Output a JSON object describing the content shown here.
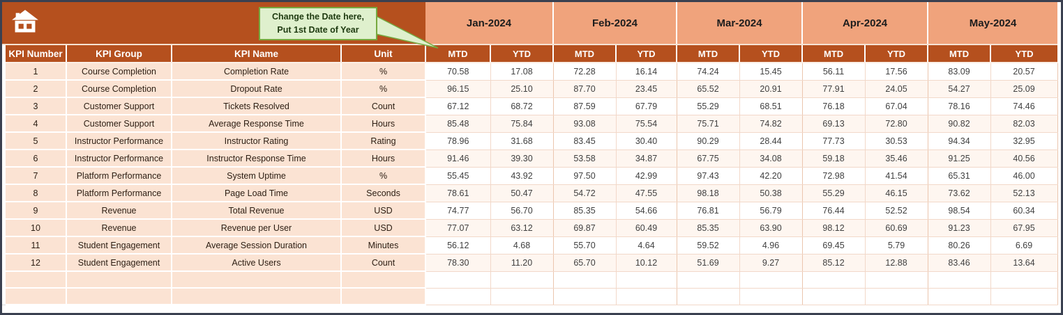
{
  "callout": {
    "line1": "Change the Date here,",
    "line2": "Put 1st Date of Year"
  },
  "months": [
    "Jan-2024",
    "Feb-2024",
    "Mar-2024",
    "Apr-2024",
    "May-2024"
  ],
  "subcolumns": [
    "MTD",
    "YTD"
  ],
  "columns": [
    "KPI Number",
    "KPI Group",
    "KPI Name",
    "Unit"
  ],
  "rows": [
    {
      "kpi_number": "1",
      "kpi_group": "Course Completion",
      "kpi_name": "Completion Rate",
      "unit": "%",
      "values": [
        "70.58",
        "17.08",
        "72.28",
        "16.14",
        "74.24",
        "15.45",
        "56.11",
        "17.56",
        "83.09",
        "20.57"
      ]
    },
    {
      "kpi_number": "2",
      "kpi_group": "Course Completion",
      "kpi_name": "Dropout Rate",
      "unit": "%",
      "values": [
        "96.15",
        "25.10",
        "87.70",
        "23.45",
        "65.52",
        "20.91",
        "77.91",
        "24.05",
        "54.27",
        "25.09"
      ]
    },
    {
      "kpi_number": "3",
      "kpi_group": "Customer Support",
      "kpi_name": "Tickets Resolved",
      "unit": "Count",
      "values": [
        "67.12",
        "68.72",
        "87.59",
        "67.79",
        "55.29",
        "68.51",
        "76.18",
        "67.04",
        "78.16",
        "74.46"
      ]
    },
    {
      "kpi_number": "4",
      "kpi_group": "Customer Support",
      "kpi_name": "Average Response Time",
      "unit": "Hours",
      "values": [
        "85.48",
        "75.84",
        "93.08",
        "75.54",
        "75.71",
        "74.82",
        "69.13",
        "72.80",
        "90.82",
        "82.03"
      ]
    },
    {
      "kpi_number": "5",
      "kpi_group": "Instructor Performance",
      "kpi_name": "Instructor Rating",
      "unit": "Rating",
      "values": [
        "78.96",
        "31.68",
        "83.45",
        "30.40",
        "90.29",
        "28.44",
        "77.73",
        "30.53",
        "94.34",
        "32.95"
      ]
    },
    {
      "kpi_number": "6",
      "kpi_group": "Instructor Performance",
      "kpi_name": "Instructor Response Time",
      "unit": "Hours",
      "values": [
        "91.46",
        "39.30",
        "53.58",
        "34.87",
        "67.75",
        "34.08",
        "59.18",
        "35.46",
        "91.25",
        "40.56"
      ]
    },
    {
      "kpi_number": "7",
      "kpi_group": "Platform Performance",
      "kpi_name": "System Uptime",
      "unit": "%",
      "values": [
        "55.45",
        "43.92",
        "97.50",
        "42.99",
        "97.43",
        "42.20",
        "72.98",
        "41.54",
        "65.31",
        "46.00"
      ]
    },
    {
      "kpi_number": "8",
      "kpi_group": "Platform Performance",
      "kpi_name": "Page Load Time",
      "unit": "Seconds",
      "values": [
        "78.61",
        "50.47",
        "54.72",
        "47.55",
        "98.18",
        "50.38",
        "55.29",
        "46.15",
        "73.62",
        "52.13"
      ]
    },
    {
      "kpi_number": "9",
      "kpi_group": "Revenue",
      "kpi_name": "Total Revenue",
      "unit": "USD",
      "values": [
        "74.77",
        "56.70",
        "85.35",
        "54.66",
        "76.81",
        "56.79",
        "76.44",
        "52.52",
        "98.54",
        "60.34"
      ]
    },
    {
      "kpi_number": "10",
      "kpi_group": "Revenue",
      "kpi_name": "Revenue per User",
      "unit": "USD",
      "values": [
        "77.07",
        "63.12",
        "69.87",
        "60.49",
        "85.35",
        "63.90",
        "98.12",
        "60.69",
        "91.23",
        "67.95"
      ]
    },
    {
      "kpi_number": "11",
      "kpi_group": "Student Engagement",
      "kpi_name": "Average Session Duration",
      "unit": "Minutes",
      "values": [
        "56.12",
        "4.68",
        "55.70",
        "4.64",
        "59.52",
        "4.96",
        "69.45",
        "5.79",
        "80.26",
        "6.69"
      ]
    },
    {
      "kpi_number": "12",
      "kpi_group": "Student Engagement",
      "kpi_name": "Active Users",
      "unit": "Count",
      "values": [
        "78.30",
        "11.20",
        "65.70",
        "10.12",
        "51.69",
        "9.27",
        "85.12",
        "12.88",
        "83.46",
        "13.64"
      ]
    }
  ],
  "empty_row_count": 2,
  "colors": {
    "banner": "#B5501E",
    "month_band": "#F0A37C",
    "row_label_bg": "#FBE3D3",
    "grid_line": "#F2D8C9",
    "callout_fill": "#DFF0CD",
    "callout_border": "#76A93F",
    "frame": "#3A4050"
  }
}
